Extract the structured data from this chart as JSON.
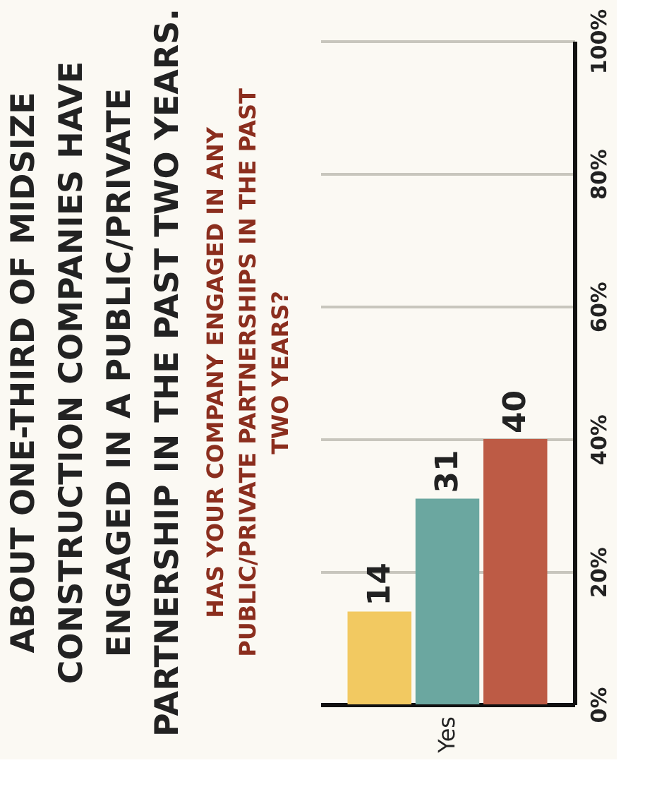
{
  "chart_data": {
    "type": "bar",
    "title": "ABOUT ONE-THIRD OF MIDSIZE CONSTRUCTION COMPANIES HAVE ENGAGED IN A PUBLIC/PRIVATE PARTNERSHIP IN THE PAST TWO YEARS.",
    "subtitle": "HAS YOUR COMPANY ENGAGED IN ANY PUBLIC/PRIVATE PARTNERSHIPS IN THE PAST TWO YEARS?",
    "categories": [
      null,
      "Yes",
      null
    ],
    "values": [
      14,
      31,
      40
    ],
    "colors": [
      "#f2c961",
      "#6ba7a0",
      "#bd5b45"
    ],
    "ylim": [
      0,
      100
    ],
    "yticks": [
      {
        "value": 0,
        "label": "0%"
      },
      {
        "value": 20,
        "label": "20%"
      },
      {
        "value": 40,
        "label": "40%"
      },
      {
        "value": 60,
        "label": "60%"
      },
      {
        "value": 80,
        "label": "80%"
      },
      {
        "value": 100,
        "label": "100%"
      }
    ],
    "grid": "y",
    "data_labels": true
  }
}
